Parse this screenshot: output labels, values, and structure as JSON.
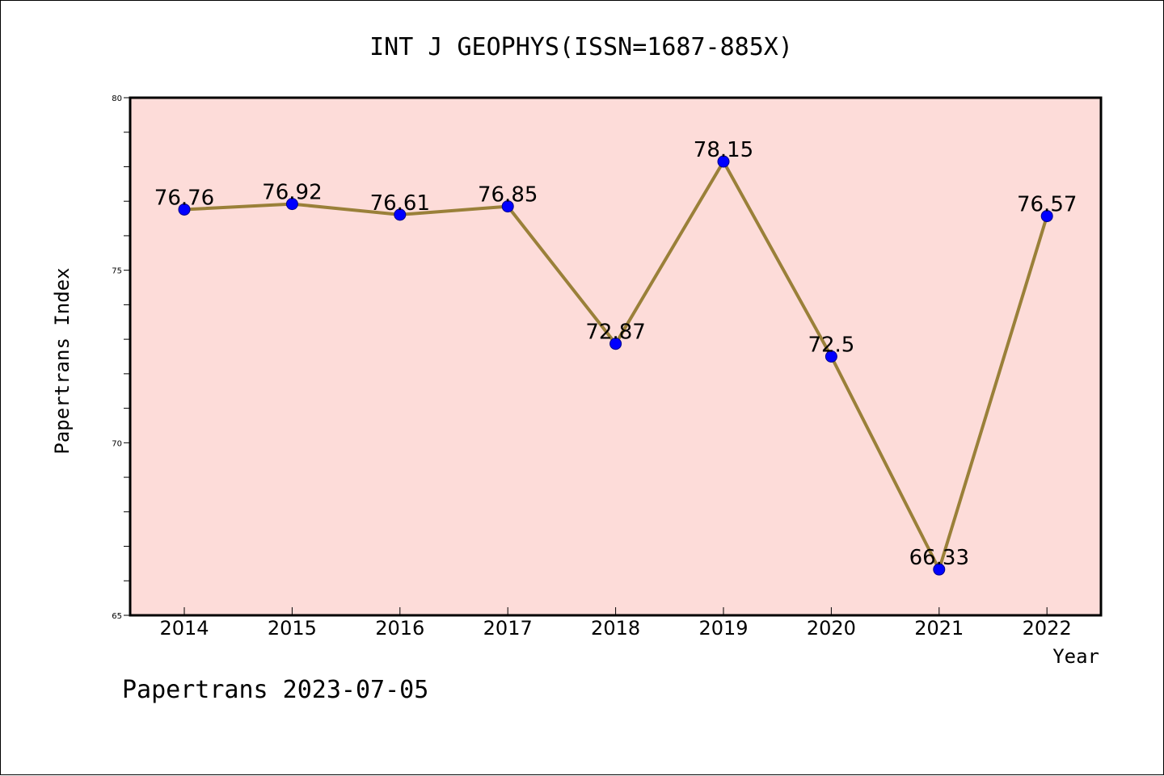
{
  "chart_data": {
    "type": "line",
    "title": "INT J GEOPHYS(ISSN=1687-885X)",
    "xlabel": "Year",
    "ylabel": "Papertrans Index",
    "categories": [
      "2014",
      "2015",
      "2016",
      "2017",
      "2018",
      "2019",
      "2020",
      "2021",
      "2022"
    ],
    "series": [
      {
        "values": [
          76.76,
          76.92,
          76.61,
          76.85,
          72.87,
          78.15,
          72.5,
          66.33,
          76.57
        ],
        "data_labels": [
          "76.76",
          "76.92",
          "76.61",
          "76.85",
          "72.87",
          "78.15",
          "72.5",
          "66.33",
          "76.57"
        ]
      }
    ],
    "ylim": [
      65,
      80
    ],
    "yticks": [
      "65",
      "70",
      "75",
      "80"
    ],
    "grid": false,
    "legend": "none",
    "colors": {
      "plot_background": "#fddcd9",
      "line": "#9a8039",
      "marker": "#0000ff",
      "marker_edge": "#00008b",
      "axes": "#000000"
    }
  },
  "footer": {
    "text": "Papertrans 2023-07-05"
  }
}
